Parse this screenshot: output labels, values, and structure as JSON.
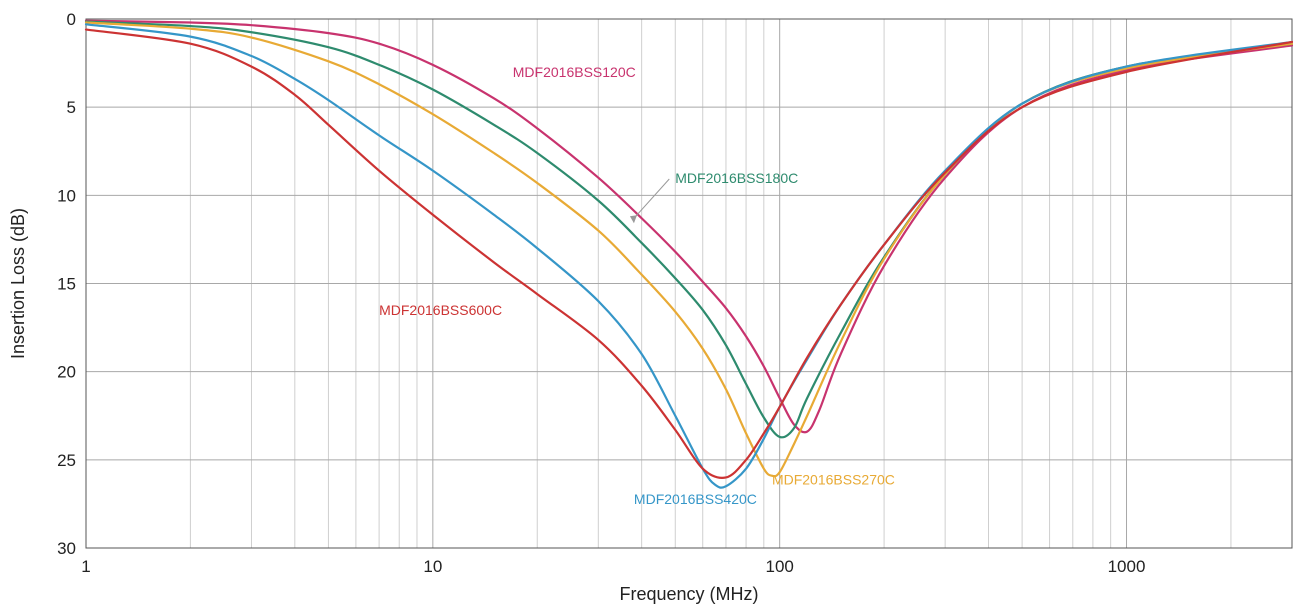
{
  "chart_data": {
    "type": "line",
    "title": "",
    "xlabel": "Frequency (MHz)",
    "ylabel": "Insertion Loss (dB)",
    "xscale": "log",
    "xlim": [
      1,
      3000
    ],
    "ylim": [
      0,
      30
    ],
    "y_inverted": true,
    "grid": true,
    "legend": "none (series labeled directly on curves)",
    "x_ticks": [
      1,
      10,
      100,
      1000
    ],
    "x_tick_labels": [
      "1",
      "10",
      "100",
      "1000"
    ],
    "y_ticks": [
      0,
      5,
      10,
      15,
      20,
      25,
      30
    ],
    "y_tick_labels": [
      "0",
      "5",
      "10",
      "15",
      "20",
      "25",
      "30"
    ],
    "series": [
      {
        "name": "MDF2016BSS120C",
        "color": "#c8336e",
        "label_pos": [
          17,
          3.3
        ],
        "x": [
          1,
          2,
          3,
          5,
          7,
          10,
          15,
          20,
          30,
          40,
          50,
          60,
          70,
          80,
          90,
          100,
          110,
          120,
          130,
          150,
          200,
          300,
          500,
          1000,
          3000
        ],
        "y": [
          0.1,
          0.2,
          0.35,
          0.8,
          1.4,
          2.6,
          4.5,
          6.2,
          9.0,
          11.3,
          13.2,
          14.9,
          16.4,
          18.0,
          19.7,
          21.5,
          23.0,
          23.4,
          22.2,
          19.0,
          14.0,
          9.0,
          5.0,
          2.9,
          1.5
        ]
      },
      {
        "name": "MDF2016BSS180C",
        "color": "#2e8b6e",
        "label_pos": [
          50,
          9.3
        ],
        "x": [
          1,
          2,
          3,
          5,
          7,
          10,
          15,
          20,
          30,
          40,
          50,
          60,
          70,
          80,
          90,
          100,
          110,
          120,
          150,
          200,
          300,
          500,
          1000,
          3000
        ],
        "y": [
          0.15,
          0.4,
          0.75,
          1.6,
          2.6,
          4.0,
          6.0,
          7.6,
          10.3,
          12.7,
          14.7,
          16.5,
          18.5,
          20.7,
          22.6,
          23.7,
          23.2,
          21.5,
          17.8,
          13.5,
          8.8,
          4.8,
          2.7,
          1.4
        ]
      },
      {
        "name": "MDF2016BSS270C",
        "color": "#e8aa35",
        "label_pos": [
          95,
          26.4
        ],
        "x": [
          1,
          2,
          3,
          5,
          7,
          10,
          15,
          20,
          30,
          40,
          50,
          60,
          70,
          80,
          90,
          95,
          100,
          110,
          120,
          150,
          200,
          300,
          500,
          1000,
          3000
        ],
        "y": [
          0.2,
          0.55,
          1.05,
          2.4,
          3.7,
          5.4,
          7.6,
          9.3,
          12.0,
          14.5,
          16.6,
          18.7,
          21.0,
          23.5,
          25.5,
          25.9,
          25.7,
          24.1,
          22.5,
          18.3,
          13.6,
          8.8,
          4.8,
          2.8,
          1.4
        ]
      },
      {
        "name": "MDF2016BSS420C",
        "color": "#3596c8",
        "label_pos": [
          38,
          27.5
        ],
        "x": [
          1,
          2,
          3,
          4,
          5,
          7,
          10,
          15,
          20,
          30,
          40,
          50,
          60,
          65,
          70,
          80,
          90,
          100,
          120,
          150,
          200,
          300,
          500,
          1000,
          3000
        ],
        "y": [
          0.3,
          1.0,
          2.1,
          3.4,
          4.6,
          6.6,
          8.6,
          11.1,
          13.0,
          16.0,
          19.0,
          22.5,
          25.5,
          26.4,
          26.5,
          25.5,
          23.8,
          22.0,
          19.3,
          16.2,
          12.8,
          8.6,
          4.8,
          2.7,
          1.3
        ]
      },
      {
        "name": "MDF2016BSS600C",
        "color": "#cc3333",
        "label_pos": [
          7,
          16.8
        ],
        "x": [
          1,
          2,
          3,
          4,
          5,
          7,
          10,
          15,
          20,
          30,
          40,
          50,
          60,
          70,
          80,
          90,
          100,
          120,
          150,
          200,
          300,
          500,
          1000,
          3000
        ],
        "y": [
          0.6,
          1.4,
          2.7,
          4.3,
          6.0,
          8.6,
          11.1,
          13.8,
          15.6,
          18.2,
          20.8,
          23.3,
          25.5,
          26.0,
          25.0,
          23.5,
          22.0,
          19.2,
          16.2,
          12.8,
          8.7,
          5.0,
          3.0,
          1.3
        ]
      }
    ]
  }
}
